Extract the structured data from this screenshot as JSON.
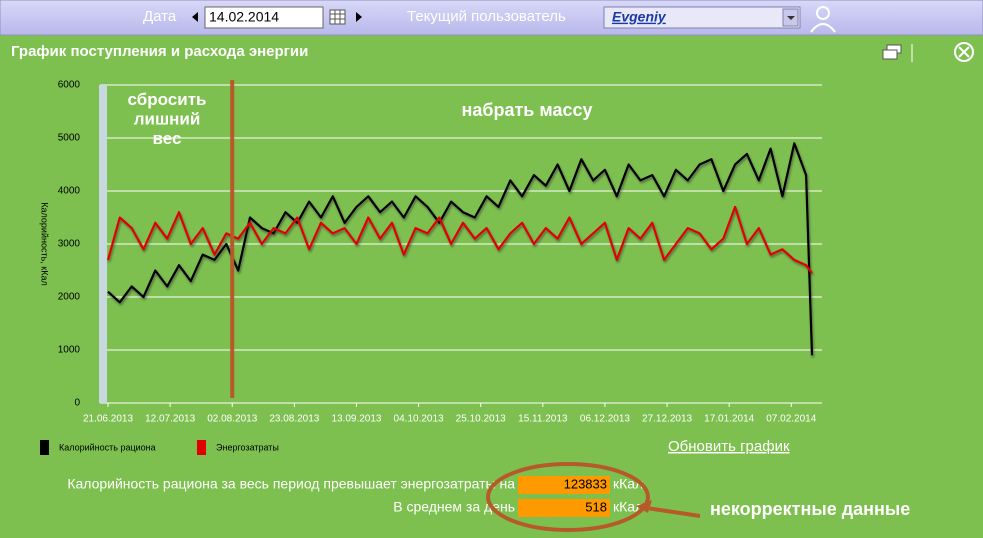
{
  "header": {
    "date_label": "Дата",
    "date_value": "14.02.2014",
    "user_label": "Текущий пользователь",
    "user_name": "Evgeniy"
  },
  "panel": {
    "title": "График поступления и расхода энергии"
  },
  "chart_data": {
    "type": "line",
    "y_label": "Калорийность, кКал",
    "ylim": [
      0,
      6000
    ],
    "yticks": [
      0,
      1000,
      2000,
      3000,
      4000,
      5000,
      6000
    ],
    "xlim": [
      "21.06.2013",
      "14.02.2014"
    ],
    "xticks": [
      "21.06.2013",
      "12.07.2013",
      "02.08.2013",
      "23.08.2013",
      "13.09.2013",
      "04.10.2013",
      "25.10.2013",
      "15.11.2013",
      "06.12.2013",
      "27.12.2013",
      "17.01.2014",
      "07.02.2014"
    ],
    "grid": true,
    "x": [
      "21.06.2013",
      "25.06.2013",
      "29.06.2013",
      "03.07.2013",
      "07.07.2013",
      "11.07.2013",
      "15.07.2013",
      "19.07.2013",
      "23.07.2013",
      "27.07.2013",
      "31.07.2013",
      "04.08.2013",
      "08.08.2013",
      "12.08.2013",
      "16.08.2013",
      "20.08.2013",
      "24.08.2013",
      "28.08.2013",
      "01.09.2013",
      "05.09.2013",
      "09.09.2013",
      "13.09.2013",
      "17.09.2013",
      "21.09.2013",
      "25.09.2013",
      "29.09.2013",
      "03.10.2013",
      "07.10.2013",
      "11.10.2013",
      "15.10.2013",
      "19.10.2013",
      "23.10.2013",
      "27.10.2013",
      "31.10.2013",
      "04.11.2013",
      "08.11.2013",
      "12.11.2013",
      "16.11.2013",
      "20.11.2013",
      "24.11.2013",
      "28.11.2013",
      "02.12.2013",
      "06.12.2013",
      "10.12.2013",
      "14.12.2013",
      "18.12.2013",
      "22.12.2013",
      "26.12.2013",
      "30.12.2013",
      "03.01.2014",
      "07.01.2014",
      "11.01.2014",
      "15.01.2014",
      "19.01.2014",
      "23.01.2014",
      "27.01.2014",
      "31.01.2014",
      "04.02.2014",
      "08.02.2014",
      "12.02.2014",
      "14.02.2014"
    ],
    "series": [
      {
        "name": "Калорийность рациона",
        "color": "#000000",
        "values": [
          2100,
          1900,
          2200,
          2000,
          2500,
          2200,
          2600,
          2300,
          2800,
          2700,
          3000,
          2500,
          3500,
          3300,
          3200,
          3600,
          3400,
          3800,
          3500,
          3900,
          3400,
          3700,
          3900,
          3600,
          3800,
          3500,
          3900,
          3700,
          3400,
          3800,
          3600,
          3500,
          3900,
          3700,
          4200,
          3900,
          4300,
          4100,
          4500,
          4000,
          4600,
          4200,
          4400,
          3900,
          4500,
          4200,
          4300,
          3900,
          4400,
          4200,
          4500,
          4600,
          4000,
          4500,
          4700,
          4200,
          4800,
          3900,
          4900,
          4300,
          900
        ]
      },
      {
        "name": "Энергозатраты",
        "color": "#e00000",
        "values": [
          2700,
          3500,
          3300,
          2900,
          3400,
          3100,
          3600,
          3000,
          3300,
          2800,
          3200,
          3100,
          3400,
          3000,
          3300,
          3200,
          3500,
          2900,
          3400,
          3200,
          3300,
          3000,
          3500,
          3100,
          3400,
          2800,
          3300,
          3200,
          3500,
          3000,
          3400,
          3100,
          3300,
          2900,
          3200,
          3400,
          3000,
          3300,
          3100,
          3500,
          3000,
          3200,
          3400,
          2700,
          3300,
          3100,
          3400,
          2700,
          3000,
          3300,
          3200,
          2900,
          3100,
          3700,
          3000,
          3300,
          2800,
          2900,
          2700,
          2600,
          2450
        ]
      }
    ],
    "annotations": [
      "сбросить\nлишний\nвес",
      "набрать массу",
      "некорректные данные"
    ]
  },
  "refresh_link": "Обновить график",
  "summary": [
    {
      "label": "Калорийность рациона за весь период превышает энергозатраты на",
      "value": 123833,
      "unit": "кКал"
    },
    {
      "label": "В среднем за день",
      "value": 518,
      "unit": "кКал"
    }
  ]
}
